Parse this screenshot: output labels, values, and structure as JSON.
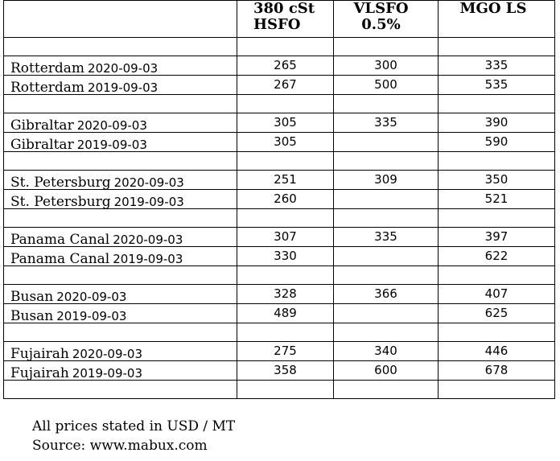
{
  "table": {
    "headers": [
      "",
      "380 cSt HSFO",
      "VLSFO 0.5%",
      "MGO LS"
    ],
    "header_lines": {
      "col1": [
        "380 cSt",
        "HSFO"
      ],
      "col2": [
        "VLSFO",
        "0.5%"
      ],
      "col3": [
        "MGO LS"
      ]
    },
    "groups": [
      {
        "port": "Rotterdam",
        "rows": [
          {
            "date": "2020-09-03",
            "hsfo": "265",
            "vlsfo": "300",
            "mgo": "335"
          },
          {
            "date": "2019-09-03",
            "hsfo": "267",
            "vlsfo": "500",
            "mgo": "535"
          }
        ]
      },
      {
        "port": "Gibraltar",
        "rows": [
          {
            "date": "2020-09-03",
            "hsfo": "305",
            "vlsfo": "335",
            "mgo": "390"
          },
          {
            "date": "2019-09-03",
            "hsfo": "305",
            "vlsfo": "",
            "mgo": "590"
          }
        ]
      },
      {
        "port": "St. Petersburg",
        "rows": [
          {
            "date": "2020-09-03",
            "hsfo": "251",
            "vlsfo": "309",
            "mgo": "350"
          },
          {
            "date": "2019-09-03",
            "hsfo": "260",
            "vlsfo": "",
            "mgo": "521"
          }
        ]
      },
      {
        "port": "Panama Canal",
        "rows": [
          {
            "date": "2020-09-03",
            "hsfo": "307",
            "vlsfo": "335",
            "mgo": "397"
          },
          {
            "date": "2019-09-03",
            "hsfo": "330",
            "vlsfo": "",
            "mgo": "622"
          }
        ]
      },
      {
        "port": "Busan",
        "rows": [
          {
            "date": "2020-09-03",
            "hsfo": "328",
            "vlsfo": "366",
            "mgo": "407"
          },
          {
            "date": "2019-09-03",
            "hsfo": "489",
            "vlsfo": "",
            "mgo": "625"
          }
        ]
      },
      {
        "port": "Fujairah",
        "rows": [
          {
            "date": "2020-09-03",
            "hsfo": "275",
            "vlsfo": "340",
            "mgo": "446"
          },
          {
            "date": "2019-09-03",
            "hsfo": "358",
            "vlsfo": "600",
            "mgo": "678"
          }
        ]
      }
    ]
  },
  "footer": {
    "note": "All prices stated in USD / MT",
    "source": "Source: www.mabux.com"
  }
}
